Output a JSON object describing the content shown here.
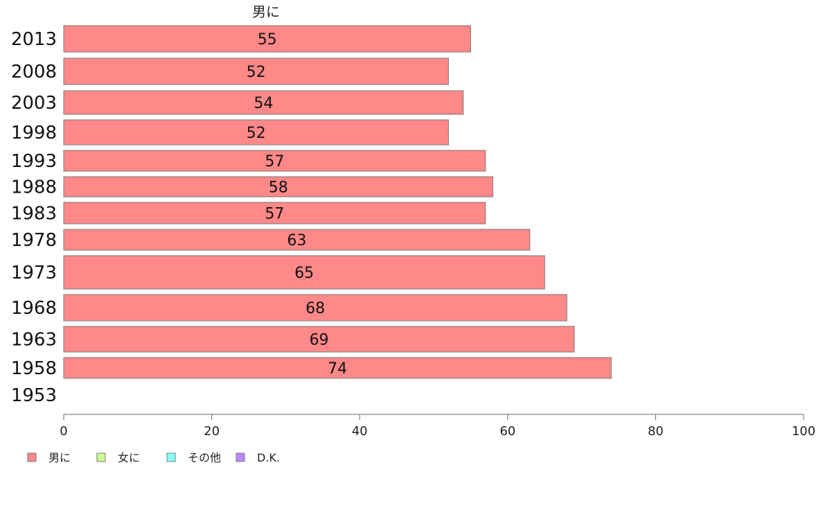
{
  "chart_data": {
    "type": "bar",
    "orientation": "horizontal",
    "stacked": true,
    "categories": [
      "2013",
      "2008",
      "2003",
      "1998",
      "1993",
      "1988",
      "1983",
      "1978",
      "1973",
      "1968",
      "1963",
      "1958",
      "1953"
    ],
    "series": [
      {
        "name": "男に",
        "color": "#ff8888",
        "values": [
          55,
          52,
          54,
          52,
          57,
          58,
          57,
          63,
          65,
          68,
          69,
          74,
          null
        ]
      }
    ],
    "legend": [
      {
        "name": "男に",
        "color": "#ff8888"
      },
      {
        "name": "女に",
        "color": "#ccff99"
      },
      {
        "name": "その他",
        "color": "#88ffff"
      },
      {
        "name": "D.K.",
        "color": "#bb88ff"
      }
    ],
    "series_title": "男に",
    "xlim": [
      0,
      100
    ],
    "xticks": [
      0,
      20,
      40,
      60,
      80,
      100
    ],
    "legend_position": "bottom-left",
    "grid": false
  }
}
